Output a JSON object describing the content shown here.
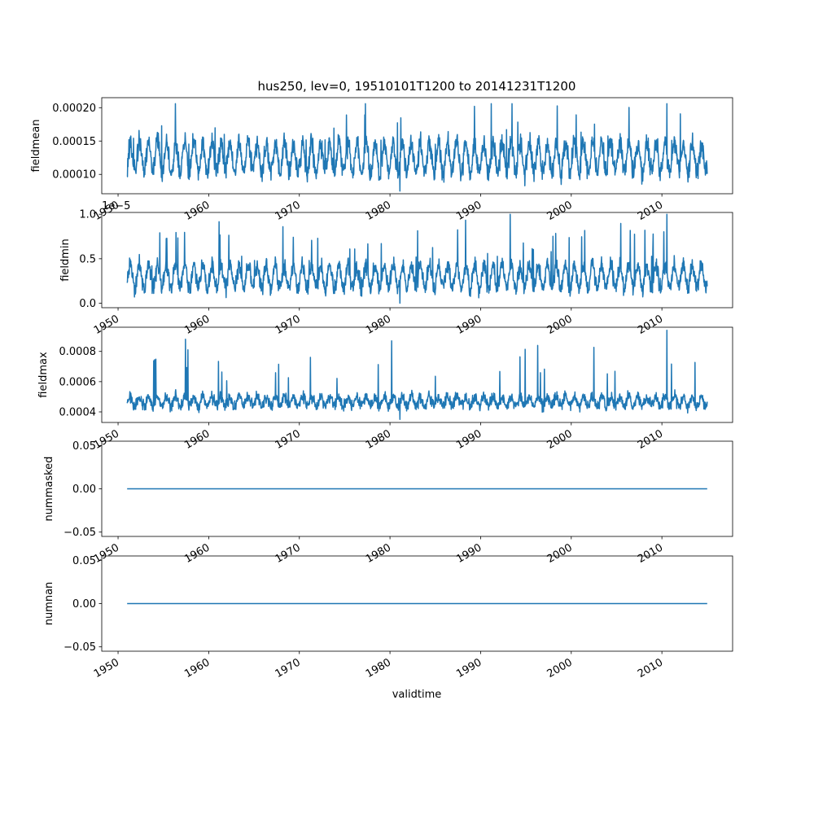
{
  "figure": {
    "title": "hus250, lev=0, 19510101T1200 to 20141231T1200",
    "xlabel": "validtime"
  },
  "chart_data": [
    {
      "type": "line",
      "ylabel": "fieldmean",
      "x_range": [
        1948.2,
        2017.8
      ],
      "ylim": [
        7.1e-05,
        0.000215
      ],
      "yticks": [
        0.0001,
        0.00015,
        0.0002
      ],
      "ytick_labels": [
        "0.00010",
        "0.00015",
        "0.00020"
      ],
      "xticks": [
        1950,
        1960,
        1970,
        1980,
        1990,
        2000,
        2010
      ],
      "xtick_labels": [
        "1950",
        "1960",
        "1970",
        "1980",
        "1990",
        "2000",
        "2010"
      ],
      "series": [
        {
          "color": "#1f77b4",
          "x_start": 1951.0,
          "x_end": 2015.0,
          "baseline": 0.000125,
          "season_amplitude": 2.2e-05,
          "noise": 1.3e-05,
          "min": 7.5e-05,
          "max": 0.000206
        }
      ]
    },
    {
      "type": "line",
      "ylabel": "fieldmin",
      "offset_label": "1e−5",
      "x_range": [
        1948.2,
        2017.8
      ],
      "ylim": [
        -0.05,
        1.02
      ],
      "yticks": [
        0.0,
        0.5,
        1.0
      ],
      "ytick_labels": [
        "0.0",
        "0.5",
        "1.0"
      ],
      "xticks": [
        1950,
        1960,
        1970,
        1980,
        1990,
        2000,
        2010
      ],
      "xtick_labels": [
        "1950",
        "1960",
        "1970",
        "1980",
        "1990",
        "2000",
        "2010"
      ],
      "series": [
        {
          "color": "#1f77b4",
          "x_start": 1951.0,
          "x_end": 2015.0,
          "baseline": 0.3,
          "season_amplitude": 0.13,
          "noise": 0.08,
          "min": 0.0,
          "max": 1.0
        }
      ]
    },
    {
      "type": "line",
      "ylabel": "fieldmax",
      "x_range": [
        1948.2,
        2017.8
      ],
      "ylim": [
        0.00033,
        0.00096
      ],
      "yticks": [
        0.0004,
        0.0006,
        0.0008
      ],
      "ytick_labels": [
        "0.0004",
        "0.0006",
        "0.0008"
      ],
      "xticks": [
        1950,
        1960,
        1970,
        1980,
        1990,
        2000,
        2010
      ],
      "xtick_labels": [
        "1950",
        "1960",
        "1970",
        "1980",
        "1990",
        "2000",
        "2010"
      ],
      "series": [
        {
          "color": "#1f77b4",
          "x_start": 1951.0,
          "x_end": 2015.0,
          "baseline": 0.00047,
          "season_amplitude": 3e-05,
          "noise": 3e-05,
          "min": 0.00035,
          "max": 0.00094
        }
      ]
    },
    {
      "type": "line",
      "ylabel": "nummasked",
      "x_range": [
        1948.2,
        2017.8
      ],
      "ylim": [
        -0.055,
        0.055
      ],
      "yticks": [
        -0.05,
        0.0,
        0.05
      ],
      "ytick_labels": [
        "−0.05",
        "0.00",
        "0.05"
      ],
      "xticks": [
        1950,
        1960,
        1970,
        1980,
        1990,
        2000,
        2010
      ],
      "xtick_labels": [
        "1950",
        "1960",
        "1970",
        "1980",
        "1990",
        "2000",
        "2010"
      ],
      "series": [
        {
          "color": "#1f77b4",
          "x": [
            1951.0,
            2015.0
          ],
          "y": [
            0,
            0
          ]
        }
      ]
    },
    {
      "type": "line",
      "ylabel": "numnan",
      "x_range": [
        1948.2,
        2017.8
      ],
      "ylim": [
        -0.055,
        0.055
      ],
      "yticks": [
        -0.05,
        0.0,
        0.05
      ],
      "ytick_labels": [
        "−0.05",
        "0.00",
        "0.05"
      ],
      "xticks": [
        1950,
        1960,
        1970,
        1980,
        1990,
        2000,
        2010
      ],
      "xtick_labels": [
        "1950",
        "1960",
        "1970",
        "1980",
        "1990",
        "2000",
        "2010"
      ],
      "series": [
        {
          "color": "#1f77b4",
          "x": [
            1951.0,
            2015.0
          ],
          "y": [
            0,
            0
          ]
        }
      ]
    }
  ]
}
